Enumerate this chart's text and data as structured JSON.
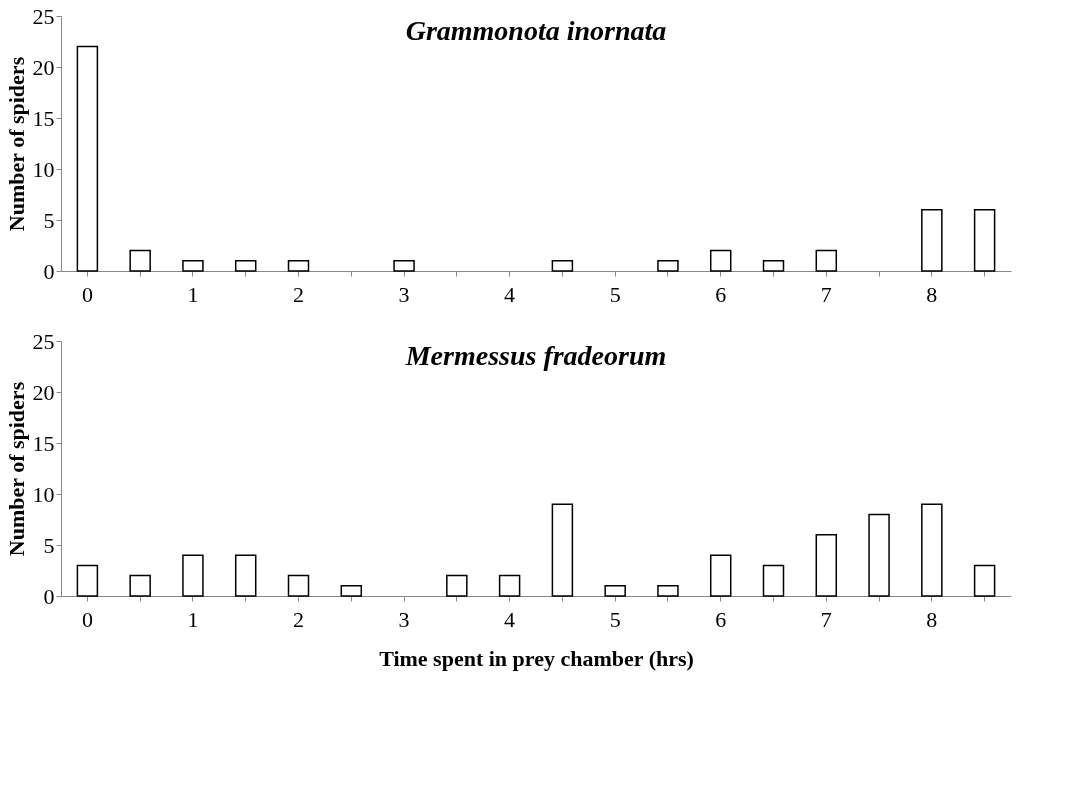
{
  "chart_data": [
    {
      "type": "bar",
      "title": "Grammonota inornata",
      "ylabel": "Number of spiders",
      "categories": [
        "0",
        null,
        "1",
        null,
        "2",
        null,
        "3",
        null,
        "4",
        null,
        "5",
        null,
        "6",
        null,
        "7",
        null,
        "8",
        null
      ],
      "series": [
        {
          "color": "#ffffff",
          "values": [
            22,
            2,
            1,
            1,
            1,
            0,
            1,
            0,
            0,
            1,
            0,
            1,
            2,
            1,
            2,
            0,
            6,
            6
          ]
        }
      ],
      "ylim": [
        0,
        25
      ],
      "yticks": [
        0,
        5,
        10,
        15,
        20,
        25
      ],
      "grid": false,
      "legend": false
    },
    {
      "type": "bar",
      "title": "Mermessus fradeorum",
      "ylabel": "Number of spiders",
      "xlabel": "Time spent in prey chamber (hrs)",
      "categories": [
        "0",
        null,
        "1",
        null,
        "2",
        null,
        "3",
        null,
        "4",
        null,
        "5",
        null,
        "6",
        null,
        "7",
        null,
        "8",
        null
      ],
      "series": [
        {
          "color": "#ffffff",
          "values": [
            3,
            2,
            4,
            4,
            2,
            1,
            0,
            2,
            2,
            9,
            1,
            1,
            4,
            3,
            6,
            8,
            9,
            3
          ]
        }
      ],
      "ylim": [
        0,
        25
      ],
      "yticks": [
        0,
        5,
        10,
        15,
        20,
        25
      ],
      "grid": false,
      "legend": false
    }
  ]
}
